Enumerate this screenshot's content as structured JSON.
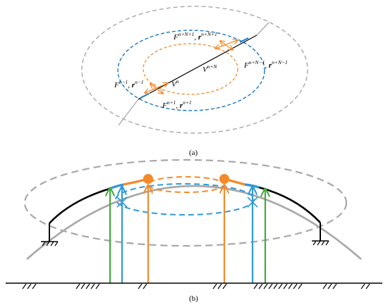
{
  "colors": {
    "gray": "#a8a8a8",
    "blue": "#1b78c2",
    "orange": "#f48a2a",
    "black": "#000000",
    "green": "#44a93f",
    "cyan": "#2f9ad6"
  },
  "panel_a": {
    "caption": "(a)",
    "labels": {
      "top_F_base": "F",
      "top_F_sup": "n+N+1",
      "top_r_base": "r",
      "top_r_sup": "n+N+1",
      "right_F_base": "F",
      "right_F_sup": "n+N−1",
      "right_r_base": "r",
      "right_r_sup": "n+N−1",
      "V_right_base": "V",
      "V_right_sup": "n+N",
      "V_left_base": "V",
      "V_left_sup": "n",
      "left_F_base": "F",
      "left_F_sup": "n−1",
      "left_r_base": "r",
      "left_r_sup": "n−1",
      "bottom_F_base": "F",
      "bottom_F_sup": "n+1",
      "bottom_r_base": "r",
      "bottom_r_sup": "n+1"
    }
  },
  "panel_b": {
    "caption": "(b)"
  }
}
